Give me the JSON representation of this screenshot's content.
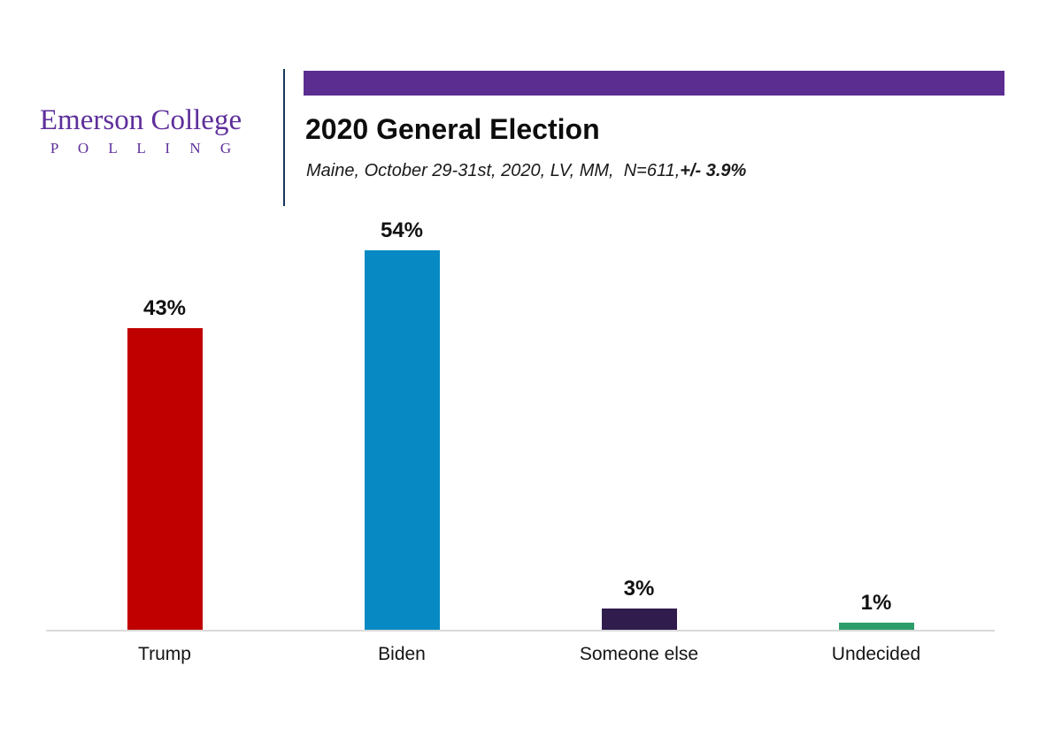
{
  "logo": {
    "name": "Emerson College",
    "subtitle": "P O L L I N G",
    "color": "#5E2F9B"
  },
  "header": {
    "accent_bar_color": "#5C2D91",
    "title": "2020 General Election",
    "subtitle_main": "Maine, October 29-31st, 2020, LV, MM,  N=611,",
    "subtitle_moe": "+/- 3.9%"
  },
  "chart_data": {
    "type": "bar",
    "title": "2020 General Election",
    "subtitle": "Maine, October 29-31st, 2020, LV, MM, N=611, +/- 3.9%",
    "categories": [
      "Trump",
      "Biden",
      "Someone else",
      "Undecided"
    ],
    "values": [
      43,
      54,
      3,
      1
    ],
    "value_labels": [
      "43%",
      "54%",
      "3%",
      "1%"
    ],
    "bar_colors": [
      "#C00000",
      "#0789C4",
      "#301C4D",
      "#2E9C68"
    ],
    "ylim": [
      0,
      60
    ],
    "grid": false,
    "legend": false,
    "axis_line_color": "#D9D9D9",
    "xlabel": "",
    "ylabel": ""
  }
}
